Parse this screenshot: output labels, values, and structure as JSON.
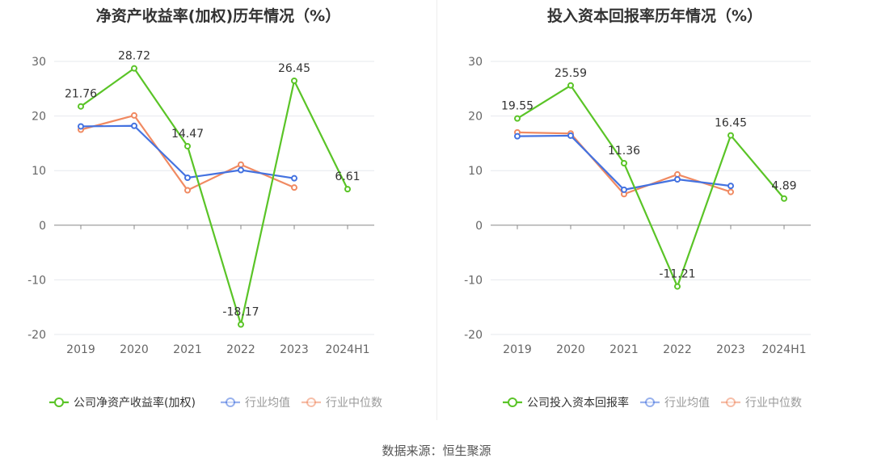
{
  "footer": {
    "source": "数据来源：恒生聚源"
  },
  "chart_data": [
    {
      "type": "line",
      "title": "净资产收益率(加权)历年情况（%）",
      "categories": [
        "2019",
        "2020",
        "2021",
        "2022",
        "2023",
        "2024H1"
      ],
      "ylim": [
        -20,
        30
      ],
      "yticks": [
        -20,
        -10,
        0,
        10,
        20,
        30
      ],
      "grid": true,
      "legend_position": "bottom",
      "series": [
        {
          "name": "公司净资产收益率(加权)",
          "color": "#5ac427",
          "values": [
            21.76,
            28.72,
            14.47,
            -18.17,
            26.45,
            6.61
          ],
          "labels": [
            "21.76",
            "28.72",
            "14.47",
            "-18.17",
            "26.45",
            "6.61"
          ]
        },
        {
          "name": "行业均值",
          "color": "#4472e0",
          "values": [
            18.1,
            18.2,
            8.7,
            10.1,
            8.6,
            null
          ]
        },
        {
          "name": "行业中位数",
          "color": "#f08a62",
          "values": [
            17.5,
            20.1,
            6.4,
            11.1,
            6.9,
            null
          ]
        }
      ]
    },
    {
      "type": "line",
      "title": "投入资本回报率历年情况（%）",
      "categories": [
        "2019",
        "2020",
        "2021",
        "2022",
        "2023",
        "2024H1"
      ],
      "ylim": [
        -20,
        30
      ],
      "yticks": [
        -20,
        -10,
        0,
        10,
        20,
        30
      ],
      "grid": true,
      "legend_position": "bottom",
      "series": [
        {
          "name": "公司投入资本回报率",
          "color": "#5ac427",
          "values": [
            19.55,
            25.59,
            11.36,
            -11.21,
            16.45,
            4.89
          ],
          "labels": [
            "19.55",
            "25.59",
            "11.36",
            "-11.21",
            "16.45",
            "4.89"
          ]
        },
        {
          "name": "行业均值",
          "color": "#4472e0",
          "values": [
            16.3,
            16.4,
            6.5,
            8.4,
            7.2,
            null
          ]
        },
        {
          "name": "行业中位数",
          "color": "#f08a62",
          "values": [
            17.0,
            16.8,
            5.7,
            9.3,
            6.1,
            null
          ]
        }
      ]
    }
  ]
}
